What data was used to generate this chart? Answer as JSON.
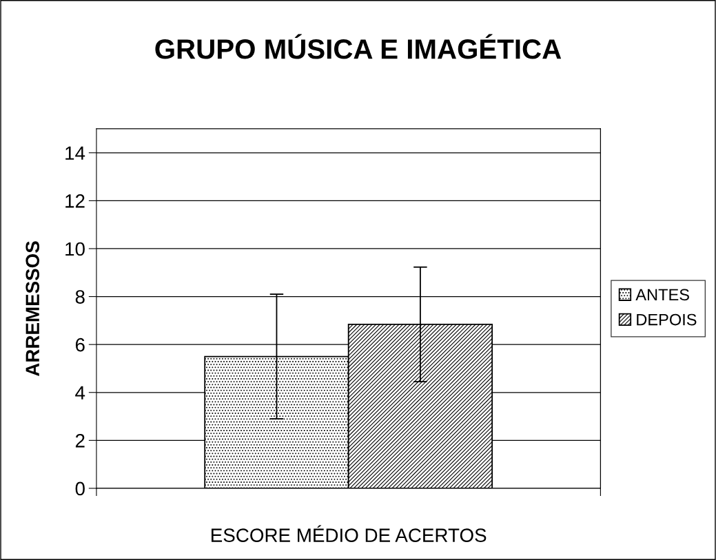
{
  "chart_data": {
    "type": "bar",
    "title": "GRUPO MÚSICA E IMAGÉTICA",
    "xlabel": "ESCORE MÉDIO DE ACERTOS",
    "ylabel": "ARREMESSOS",
    "categories": [
      null
    ],
    "series": [
      {
        "name": "ANTES",
        "color": "#000000",
        "values": [
          5.5
        ],
        "errors": [
          2.6
        ]
      },
      {
        "name": "DEPOIS",
        "color": "#000000",
        "values": [
          6.84
        ],
        "errors": [
          2.39
        ]
      }
    ],
    "ylim": [
      0,
      15
    ],
    "yticks": [
      0,
      2,
      4,
      6,
      8,
      10,
      12,
      14
    ],
    "grid": "y",
    "legend": "right"
  }
}
